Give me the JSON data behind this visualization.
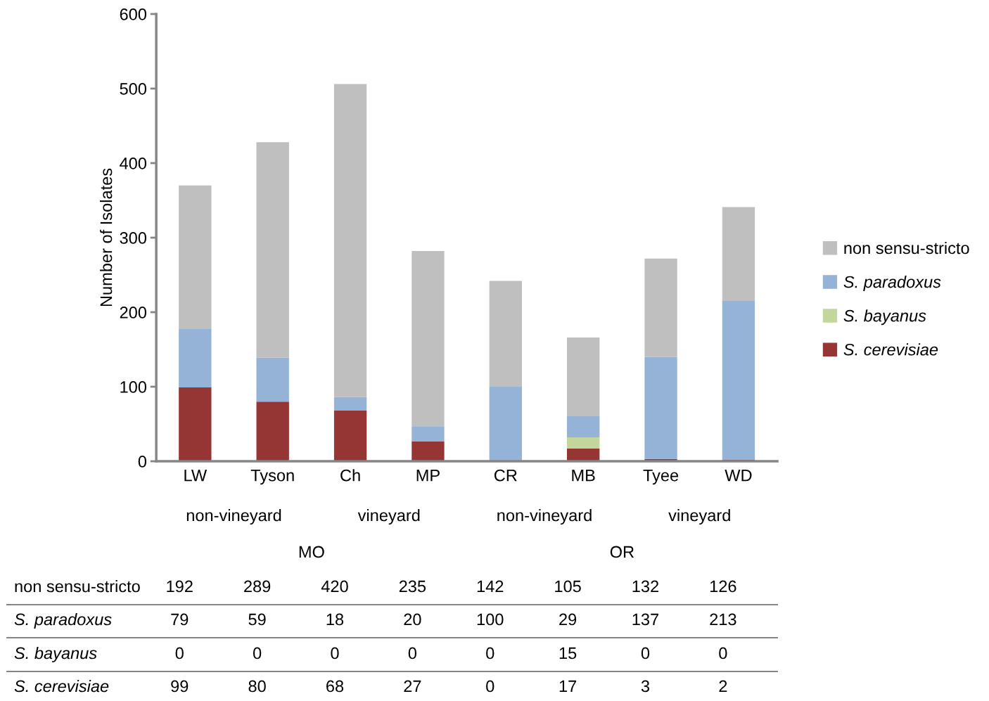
{
  "chart_data": {
    "type": "bar",
    "stacked": true,
    "ylabel": "Number of Isolates",
    "categories": [
      "LW",
      "Tyson",
      "Ch",
      "MP",
      "CR",
      "MB",
      "Tyee",
      "WD"
    ],
    "series": [
      {
        "name": "S. cerevisiae",
        "color": "#963634",
        "values": [
          99,
          80,
          68,
          27,
          0,
          17,
          3,
          2
        ]
      },
      {
        "name": "S. bayanus",
        "color": "#c3d69b",
        "values": [
          0,
          0,
          0,
          0,
          0,
          15,
          0,
          0
        ]
      },
      {
        "name": "S. paradoxus",
        "color": "#95b3d7",
        "values": [
          79,
          59,
          18,
          20,
          100,
          29,
          137,
          213
        ]
      },
      {
        "name": "non sensu-stricto",
        "color": "#bfbfbf",
        "values": [
          192,
          289,
          420,
          235,
          142,
          105,
          132,
          126
        ]
      }
    ],
    "ylim": [
      0,
      600
    ],
    "yticks": [
      0,
      100,
      200,
      300,
      400,
      500,
      600
    ],
    "annotations": [
      "non-vineyard",
      "vineyard",
      "non-vineyard",
      "vineyard",
      "MO",
      "OR"
    ],
    "data_labels": true,
    "legend": "right",
    "grid": false
  }
}
